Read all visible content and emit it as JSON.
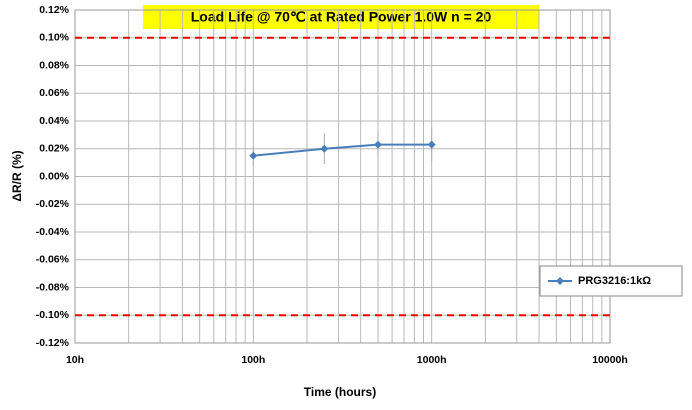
{
  "chart_data": {
    "type": "line",
    "title": "Load Life @ 70℃ at Rated Power 1.0W  n = 20",
    "x_label": "Time (hours)",
    "y_label": "ΔR/R (%)",
    "x": [
      100,
      250,
      500,
      1000
    ],
    "series": [
      {
        "name": "PRG3216:1kΩ",
        "color": "#4a7ebb",
        "values": [
          0.015,
          0.02,
          0.023,
          0.023
        ],
        "errors": [
          0.007,
          0.011,
          0.01,
          0.012
        ]
      }
    ],
    "xlim": [
      10,
      10000
    ],
    "xticks": [
      {
        "value": 10,
        "label": "10h"
      },
      {
        "value": 100,
        "label": "100h"
      },
      {
        "value": 1000,
        "label": "1000h"
      },
      {
        "value": 10000,
        "label": "10000h"
      }
    ],
    "x_log": true,
    "minor_grid": true,
    "ylim": [
      -0.12,
      0.12
    ],
    "yticks": [
      {
        "value": -0.12,
        "label": "-0.12%"
      },
      {
        "value": -0.1,
        "label": "-0.10%"
      },
      {
        "value": -0.08,
        "label": "-0.08%"
      },
      {
        "value": -0.06,
        "label": "-0.06%"
      },
      {
        "value": -0.04,
        "label": "-0.04%"
      },
      {
        "value": -0.02,
        "label": "-0.02%"
      },
      {
        "value": 0,
        "label": "0.00%"
      },
      {
        "value": 0.02,
        "label": "0.02%"
      },
      {
        "value": 0.04,
        "label": "0.04%"
      },
      {
        "value": 0.06,
        "label": "0.06%"
      },
      {
        "value": 0.08,
        "label": "0.08%"
      },
      {
        "value": 0.1,
        "label": "0.10%"
      },
      {
        "value": 0.12,
        "label": "0.12%"
      }
    ],
    "grid": true,
    "reference_lines": [
      0.1,
      -0.1
    ],
    "reference_color": "#ff0000",
    "title_background": "#ffff00",
    "legend": "right"
  }
}
